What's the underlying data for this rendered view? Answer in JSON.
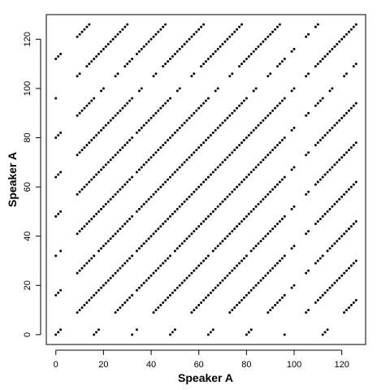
{
  "chart_data": {
    "type": "scatter",
    "title": "",
    "xlabel": "Speaker A",
    "ylabel": "Speaker A",
    "xlim": [
      -4,
      130
    ],
    "ylim": [
      -4,
      130
    ],
    "xticks": [
      0,
      20,
      40,
      60,
      80,
      100,
      120
    ],
    "yticks": [
      0,
      20,
      40,
      60,
      80,
      100,
      120
    ],
    "n_items": 127,
    "point_color": "#000000",
    "description": "Recurrence plot: a point is drawn at (i, j) when item i and item j of Speaker A's sequence match",
    "absent_indices": [
      3,
      4,
      5,
      6,
      7,
      8,
      33,
      97,
      98,
      101,
      102,
      103,
      104,
      107,
      108
    ],
    "sequence": [
      0,
      1,
      2,
      3,
      4,
      5,
      6,
      7,
      8,
      9,
      10,
      11,
      12,
      13,
      14,
      15,
      0,
      1,
      2,
      3,
      4,
      5,
      6,
      7,
      8,
      9,
      10,
      11,
      12,
      13,
      14,
      15,
      0,
      1,
      2,
      3,
      4,
      5,
      6,
      7,
      8,
      9,
      10,
      11,
      12,
      13,
      14,
      15,
      0,
      1,
      2,
      3,
      4,
      5,
      6,
      7,
      8,
      9,
      10,
      11,
      12,
      13,
      14,
      15,
      0,
      1,
      2,
      3,
      4,
      5,
      6,
      7,
      8,
      9,
      10,
      11,
      12,
      13,
      14,
      15,
      0,
      1,
      2,
      3,
      4,
      5,
      6,
      7,
      8,
      9,
      10,
      11,
      12,
      13,
      14,
      15,
      0,
      1,
      2,
      3,
      4,
      5,
      6,
      7,
      8,
      9,
      10,
      11,
      12,
      13,
      14,
      15,
      0,
      1,
      2,
      3,
      4,
      5,
      6,
      7,
      8,
      9,
      10,
      11,
      12,
      13,
      14
    ]
  }
}
